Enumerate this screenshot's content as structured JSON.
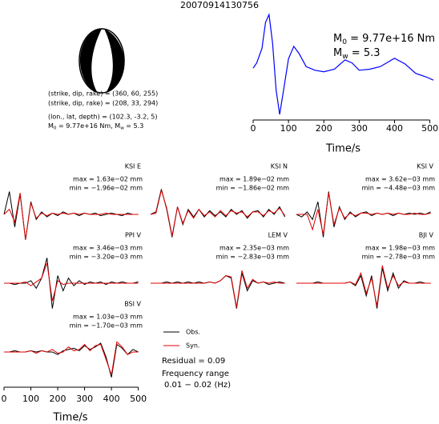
{
  "title": "20070914130756",
  "mechanism": {
    "lines": [
      "(strike, dip, rake) = (360, 60, 255)",
      "(strike, dip, rake) = (208, 33, 294)",
      "(lon., lat, depth) = (102.3, -3.2, 5)"
    ],
    "moment": {
      "m0_symbol": "M",
      "m0_sub": "0",
      "m0_text": " = 9.77e+16 Nm, ",
      "mw_symbol": "M",
      "mw_sub": "w",
      "mw_text": " = 5.3"
    }
  },
  "chart_data": [
    {
      "type": "line",
      "xlabel": "Time/s",
      "x": [
        0,
        10,
        25,
        35,
        45,
        55,
        65,
        75,
        85,
        100,
        115,
        130,
        150,
        175,
        200,
        230,
        260,
        280,
        300,
        330,
        360,
        400,
        430,
        460,
        490,
        510
      ],
      "series": [
        {
          "color": "#0000ff",
          "values": [
            -0.08,
            0.02,
            0.3,
            0.8,
            0.95,
            0.4,
            -0.5,
            -0.97,
            -0.55,
            0.1,
            0.34,
            0.2,
            -0.05,
            -0.12,
            -0.15,
            -0.1,
            0.08,
            0.02,
            -0.12,
            -0.1,
            -0.05,
            0.11,
            0.0,
            -0.18,
            -0.25,
            -0.31
          ]
        }
      ],
      "xlim": [
        0,
        510
      ],
      "xticks": [
        0,
        100,
        200,
        300,
        400,
        500
      ],
      "ylim": [
        -1,
        1
      ],
      "annotations": [
        {
          "symbol": "M",
          "sub": "0",
          "text": " = 9.77e+16 Nm"
        },
        {
          "symbol": "M",
          "sub": "w",
          "text": " = 5.3"
        }
      ]
    },
    {
      "type": "waveforms",
      "xlabel": "Time/s",
      "x": [
        0,
        20,
        40,
        60,
        80,
        100,
        120,
        140,
        160,
        180,
        200,
        220,
        240,
        260,
        280,
        300,
        320,
        340,
        360,
        380,
        400,
        420,
        440,
        460,
        480,
        500
      ],
      "xlim": [
        0,
        510
      ],
      "xticks": [
        0,
        100,
        200,
        300,
        400,
        500
      ],
      "ylim": [
        -1.2,
        1.2
      ],
      "panels": [
        {
          "station": "KSI E",
          "max": "max = 1.63e−02 mm",
          "min": "min = −1.96e−02 mm"
        },
        {
          "station": "KSI N",
          "max": "max = 1.89e−02 mm",
          "min": "min = −1.86e−02 mm"
        },
        {
          "station": "KSI V",
          "max": "max = 3.62e−03 mm",
          "min": "min = −4.48e−03 mm"
        },
        {
          "station": "PPI V",
          "max": "max = 3.46e−03 mm",
          "min": "min = −3.20e−03 mm"
        },
        {
          "station": "LEM V",
          "max": "max = 2.35e−03 mm",
          "min": "min = −2.83e−03 mm"
        },
        {
          "station": "BJI V",
          "max": "max = 1.98e−03 mm",
          "min": "min = −2.78e−03 mm"
        },
        {
          "station": "BSI V",
          "max": "max = 1.03e−03 mm",
          "min": "min = −1.70e−03 mm"
        }
      ],
      "series": [
        {
          "name": "Obs.",
          "color": "#000000",
          "values": [
            [
              0,
              0.9,
              -0.5,
              0.8,
              -1.0,
              0.5,
              -0.2,
              0.1,
              -0.1,
              0.05,
              -0.05,
              0.1,
              0,
              0.05,
              -0.05,
              0.05,
              0,
              0.05,
              -0.05,
              0,
              0.05,
              0,
              -0.05,
              0.05,
              0,
              0
            ],
            [
              0,
              0.1,
              1.0,
              0.2,
              -0.9,
              0.3,
              -0.4,
              0.2,
              -0.1,
              0.2,
              -0.1,
              0.15,
              -0.05,
              0.1,
              -0.1,
              0.2,
              0,
              0.15,
              -0.15,
              0.1,
              0.15,
              -0.1,
              0.2,
              0,
              0.3,
              -0.1
            ],
            [
              0,
              -0.1,
              0.1,
              -0.2,
              0.5,
              -0.9,
              0.9,
              -0.5,
              0.3,
              -0.2,
              0.1,
              -0.1,
              0.05,
              0.1,
              -0.05,
              0.05,
              0,
              0.05,
              -0.05,
              0.05,
              0,
              0.05,
              0,
              0.05,
              0,
              0.1
            ],
            [
              0,
              0,
              -0.05,
              0,
              0,
              0.1,
              -0.2,
              0.2,
              1.0,
              -1.0,
              0.3,
              -0.3,
              0.2,
              -0.1,
              0.1,
              -0.05,
              0.05,
              0,
              0.05,
              -0.05,
              0.05,
              0,
              0.05,
              0,
              0,
              0.05
            ],
            [
              0,
              0,
              0,
              0.05,
              0,
              0.05,
              0,
              0.05,
              0,
              0.05,
              0,
              0.05,
              0,
              0.1,
              0.3,
              0.2,
              -1.0,
              0.4,
              -0.3,
              0.1,
              0,
              0.05,
              -0.05,
              0,
              0.05,
              0
            ],
            [
              0,
              0,
              0,
              0,
              0.05,
              0,
              0,
              0,
              0,
              0,
              0.05,
              -0.1,
              0.3,
              -0.5,
              0.3,
              -1.0,
              0.6,
              -0.3,
              0.4,
              -0.2,
              0.1,
              0,
              0,
              0.05,
              0,
              0
            ],
            [
              0,
              0,
              0.05,
              0,
              0,
              0.05,
              0,
              0.05,
              0,
              0,
              -0.1,
              0.05,
              0.1,
              0.15,
              0.05,
              0.25,
              0.1,
              0.2,
              0.35,
              -0.2,
              -1.0,
              0.3,
              0.15,
              -0.1,
              0.1,
              0
            ]
          ]
        },
        {
          "name": "Syn.",
          "color": "#e00000",
          "values": [
            [
              0,
              0.2,
              -0.3,
              0.85,
              -1.0,
              0.45,
              -0.15,
              0.05,
              -0.05,
              0.05,
              0,
              0.05,
              0,
              0.05,
              0,
              0.05,
              0,
              0,
              0,
              0.05,
              0,
              0,
              0,
              0,
              0,
              0
            ],
            [
              0,
              0.05,
              0.95,
              0.25,
              -0.85,
              0.3,
              -0.35,
              0.15,
              -0.15,
              0.2,
              -0.05,
              0.1,
              -0.1,
              0.15,
              -0.05,
              0.15,
              0.05,
              0.1,
              -0.1,
              0.1,
              0.1,
              -0.05,
              0.15,
              0.05,
              0.25,
              -0.05
            ],
            [
              0,
              0,
              0,
              -0.6,
              0.2,
              -0.8,
              0.85,
              -0.4,
              0.25,
              -0.15,
              0.05,
              -0.05,
              0.05,
              0.05,
              0,
              0.05,
              0,
              0.05,
              0,
              0.05,
              0,
              0,
              0.05,
              0,
              0,
              0.05
            ],
            [
              0,
              0,
              0,
              0,
              0.05,
              -0.1,
              0.05,
              0.2,
              0.8,
              -0.7,
              0.1,
              -0.05,
              0,
              0,
              0,
              0,
              0,
              0,
              0,
              0,
              0,
              0,
              0,
              0,
              0,
              0
            ],
            [
              0,
              0,
              0,
              0,
              0,
              0,
              0,
              0,
              0,
              0,
              0,
              0.05,
              0,
              0.1,
              0.3,
              0.25,
              -0.95,
              0.5,
              -0.2,
              0.15,
              0,
              0.05,
              0,
              0.05,
              0,
              0
            ],
            [
              0,
              0,
              0,
              0,
              0,
              0,
              0,
              0,
              0,
              0,
              0.05,
              -0.05,
              0.4,
              -0.4,
              0.2,
              -0.9,
              0.7,
              -0.2,
              0.3,
              -0.1,
              0.05,
              0,
              0,
              0,
              0,
              0
            ],
            [
              0,
              0,
              0,
              0,
              0,
              0.05,
              -0.05,
              0.05,
              0,
              0.1,
              -0.05,
              0,
              0.2,
              0.05,
              0.1,
              0.3,
              0.05,
              0.25,
              0.3,
              -0.3,
              -0.9,
              0.4,
              0.2,
              -0.1,
              0,
              0
            ]
          ]
        }
      ],
      "notes": [
        "Residual = 0.09",
        "Frequency range",
        "0.01 − 0.02 (Hz)"
      ]
    }
  ]
}
